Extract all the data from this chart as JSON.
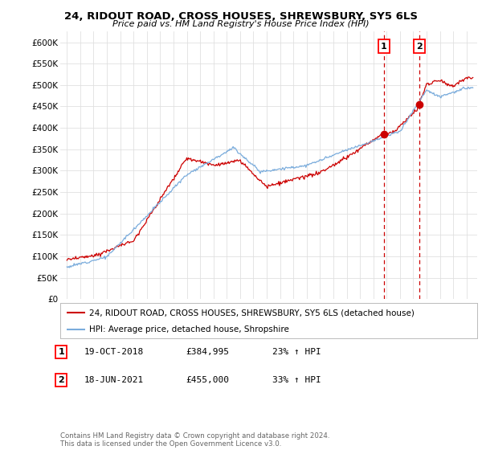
{
  "title": "24, RIDOUT ROAD, CROSS HOUSES, SHREWSBURY, SY5 6LS",
  "subtitle": "Price paid vs. HM Land Registry's House Price Index (HPI)",
  "ylabel_ticks": [
    "£0",
    "£50K",
    "£100K",
    "£150K",
    "£200K",
    "£250K",
    "£300K",
    "£350K",
    "£400K",
    "£450K",
    "£500K",
    "£550K",
    "£600K"
  ],
  "ytick_values": [
    0,
    50000,
    100000,
    150000,
    200000,
    250000,
    300000,
    350000,
    400000,
    450000,
    500000,
    550000,
    600000
  ],
  "ylim": [
    0,
    625000
  ],
  "xlim_start": 1994.5,
  "xlim_end": 2025.8,
  "legend_line1": "24, RIDOUT ROAD, CROSS HOUSES, SHREWSBURY, SY5 6LS (detached house)",
  "legend_line2": "HPI: Average price, detached house, Shropshire",
  "sale1_label": "1",
  "sale1_date": "19-OCT-2018",
  "sale1_price": "£384,995",
  "sale1_hpi": "23% ↑ HPI",
  "sale2_label": "2",
  "sale2_date": "18-JUN-2021",
  "sale2_price": "£455,000",
  "sale2_hpi": "33% ↑ HPI",
  "footnote": "Contains HM Land Registry data © Crown copyright and database right 2024.\nThis data is licensed under the Open Government Licence v3.0.",
  "line_color_red": "#cc0000",
  "line_color_blue": "#7aacdc",
  "sale1_x": 2018.8,
  "sale2_x": 2021.46,
  "sale1_y": 384995,
  "sale2_y": 455000,
  "vline_color": "#cc0000",
  "background_color": "#ffffff",
  "grid_color": "#e0e0e0"
}
